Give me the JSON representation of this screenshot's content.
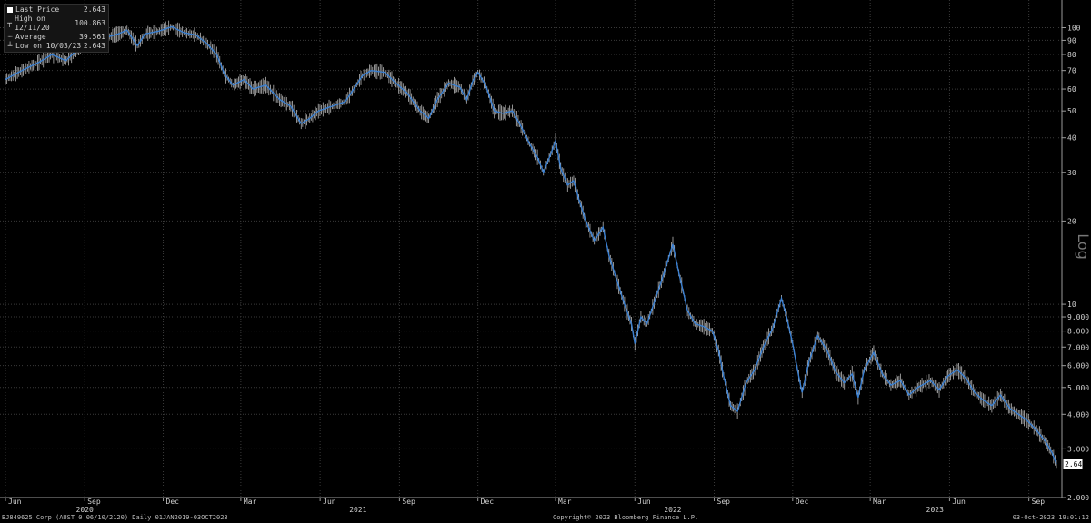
{
  "legend": {
    "last_price_label": "Last Price",
    "last_price_value": "2.643",
    "high_label": "High on 12/11/20",
    "high_value": "100.863",
    "average_label": "Average",
    "average_value": "39.561",
    "low_label": "Low on 10/03/23",
    "low_value": "2.643"
  },
  "axis_scale_label": "Log",
  "footer": {
    "left": "BJ849625 Corp (AUST 0 06/10/2120)  Daily 01JAN2019-03OCT2023",
    "center": "Copyright© 2023 Bloomberg Finance L.P.",
    "right": "03-Oct-2023 19:01:12"
  },
  "colors": {
    "background": "#000000",
    "line": "#3a7fd0",
    "bar": "#d8d8d8",
    "grid": "#3a3a3a"
  },
  "chart_data": {
    "type": "line",
    "y_scale": "log",
    "ylim": [
      2.0,
      115
    ],
    "y_ticks": [
      {
        "v": 100,
        "label": "100"
      },
      {
        "v": 90,
        "label": "90"
      },
      {
        "v": 80,
        "label": "80"
      },
      {
        "v": 70,
        "label": "70"
      },
      {
        "v": 60,
        "label": "60"
      },
      {
        "v": 50,
        "label": "50"
      },
      {
        "v": 40,
        "label": "40"
      },
      {
        "v": 30,
        "label": "30"
      },
      {
        "v": 20,
        "label": "20"
      },
      {
        "v": 10,
        "label": "10"
      },
      {
        "v": 9,
        "label": "9.000"
      },
      {
        "v": 8,
        "label": "8.000"
      },
      {
        "v": 7,
        "label": "7.000"
      },
      {
        "v": 6,
        "label": "6.000"
      },
      {
        "v": 5,
        "label": "5.000"
      },
      {
        "v": 4,
        "label": "4.000"
      },
      {
        "v": 3,
        "label": "3.000"
      },
      {
        "v": 2,
        "label": "2.000"
      }
    ],
    "x_range": [
      "2020-06-01",
      "2023-10-03"
    ],
    "month_ticks": [
      {
        "date": "2020-06-01",
        "label": "Jun"
      },
      {
        "date": "2020-09-01",
        "label": "Sep"
      },
      {
        "date": "2020-12-01",
        "label": "Dec"
      },
      {
        "date": "2021-03-01",
        "label": "Mar"
      },
      {
        "date": "2021-06-01",
        "label": "Jun"
      },
      {
        "date": "2021-09-01",
        "label": "Sep"
      },
      {
        "date": "2021-12-01",
        "label": "Dec"
      },
      {
        "date": "2022-03-01",
        "label": "Mar"
      },
      {
        "date": "2022-06-01",
        "label": "Jun"
      },
      {
        "date": "2022-09-01",
        "label": "Sep"
      },
      {
        "date": "2022-12-01",
        "label": "Dec"
      },
      {
        "date": "2023-03-01",
        "label": "Mar"
      },
      {
        "date": "2023-06-01",
        "label": "Jun"
      },
      {
        "date": "2023-09-01",
        "label": "Sep"
      }
    ],
    "year_labels": [
      {
        "date": "2020-09-01",
        "label": "2020"
      },
      {
        "date": "2021-07-15",
        "label": "2021"
      },
      {
        "date": "2022-07-15",
        "label": "2022"
      },
      {
        "date": "2023-05-15",
        "label": "2023"
      }
    ],
    "last_price_tag": "2.643",
    "series": [
      {
        "points": [
          [
            "2020-06-01",
            65
          ],
          [
            "2020-06-20",
            70
          ],
          [
            "2020-07-10",
            75
          ],
          [
            "2020-07-25",
            80
          ],
          [
            "2020-08-10",
            76
          ],
          [
            "2020-08-25",
            84
          ],
          [
            "2020-09-10",
            88
          ],
          [
            "2020-09-25",
            92
          ],
          [
            "2020-10-10",
            95
          ],
          [
            "2020-10-20",
            98
          ],
          [
            "2020-11-01",
            86
          ],
          [
            "2020-11-10",
            95
          ],
          [
            "2020-11-25",
            97
          ],
          [
            "2020-12-11",
            100.8
          ],
          [
            "2020-12-25",
            96
          ],
          [
            "2021-01-08",
            94
          ],
          [
            "2021-01-20",
            88
          ],
          [
            "2021-02-01",
            80
          ],
          [
            "2021-02-10",
            68
          ],
          [
            "2021-02-20",
            62
          ],
          [
            "2021-03-05",
            65
          ],
          [
            "2021-03-15",
            60
          ],
          [
            "2021-03-30",
            62
          ],
          [
            "2021-04-15",
            55
          ],
          [
            "2021-04-28",
            52
          ],
          [
            "2021-05-10",
            45
          ],
          [
            "2021-05-20",
            47
          ],
          [
            "2021-05-30",
            50
          ],
          [
            "2021-06-15",
            52
          ],
          [
            "2021-06-30",
            54
          ],
          [
            "2021-07-10",
            60
          ],
          [
            "2021-07-20",
            67
          ],
          [
            "2021-07-30",
            70
          ],
          [
            "2021-08-15",
            69
          ],
          [
            "2021-08-28",
            63
          ],
          [
            "2021-09-10",
            58
          ],
          [
            "2021-09-25",
            50
          ],
          [
            "2021-10-05",
            47
          ],
          [
            "2021-10-15",
            55
          ],
          [
            "2021-10-28",
            63
          ],
          [
            "2021-11-10",
            61
          ],
          [
            "2021-11-18",
            55
          ],
          [
            "2021-11-25",
            64
          ],
          [
            "2021-12-01",
            69
          ],
          [
            "2021-12-10",
            62
          ],
          [
            "2021-12-20",
            50
          ],
          [
            "2021-12-30",
            49
          ],
          [
            "2022-01-10",
            50
          ],
          [
            "2022-01-20",
            44
          ],
          [
            "2022-01-30",
            38
          ],
          [
            "2022-02-08",
            34
          ],
          [
            "2022-02-15",
            30
          ],
          [
            "2022-02-25",
            36
          ],
          [
            "2022-03-01",
            39
          ],
          [
            "2022-03-07",
            31
          ],
          [
            "2022-03-15",
            27
          ],
          [
            "2022-03-22",
            28
          ],
          [
            "2022-03-28",
            24
          ],
          [
            "2022-04-05",
            20
          ],
          [
            "2022-04-15",
            17
          ],
          [
            "2022-04-25",
            19
          ],
          [
            "2022-05-02",
            15
          ],
          [
            "2022-05-10",
            12.5
          ],
          [
            "2022-05-20",
            10
          ],
          [
            "2022-05-28",
            8.5
          ],
          [
            "2022-06-01",
            7.2
          ],
          [
            "2022-06-08",
            9
          ],
          [
            "2022-06-15",
            8.5
          ],
          [
            "2022-06-25",
            10.5
          ],
          [
            "2022-07-05",
            13
          ],
          [
            "2022-07-15",
            16.5
          ],
          [
            "2022-07-22",
            13
          ],
          [
            "2022-08-01",
            9.5
          ],
          [
            "2022-08-10",
            8.5
          ],
          [
            "2022-08-20",
            8.3
          ],
          [
            "2022-08-30",
            8
          ],
          [
            "2022-09-06",
            6.8
          ],
          [
            "2022-09-12",
            5.5
          ],
          [
            "2022-09-20",
            4.3
          ],
          [
            "2022-09-28",
            4.1
          ],
          [
            "2022-10-08",
            5.2
          ],
          [
            "2022-10-18",
            5.8
          ],
          [
            "2022-10-28",
            7
          ],
          [
            "2022-11-08",
            8.2
          ],
          [
            "2022-11-18",
            10.5
          ],
          [
            "2022-11-24",
            9
          ],
          [
            "2022-12-01",
            7.2
          ],
          [
            "2022-12-08",
            5.5
          ],
          [
            "2022-12-12",
            4.8
          ],
          [
            "2022-12-20",
            6.2
          ],
          [
            "2022-12-30",
            7.7
          ],
          [
            "2023-01-10",
            6.8
          ],
          [
            "2023-01-20",
            5.7
          ],
          [
            "2023-01-30",
            5.2
          ],
          [
            "2023-02-08",
            5.6
          ],
          [
            "2023-02-15",
            4.6
          ],
          [
            "2023-02-22",
            5.8
          ],
          [
            "2023-03-05",
            6.7
          ],
          [
            "2023-03-15",
            5.6
          ],
          [
            "2023-03-25",
            5.1
          ],
          [
            "2023-04-05",
            5.3
          ],
          [
            "2023-04-15",
            4.7
          ],
          [
            "2023-04-25",
            5
          ],
          [
            "2023-05-10",
            5.3
          ],
          [
            "2023-05-20",
            4.9
          ],
          [
            "2023-05-30",
            5.5
          ],
          [
            "2023-06-10",
            5.8
          ],
          [
            "2023-06-20",
            5.4
          ],
          [
            "2023-06-30",
            4.8
          ],
          [
            "2023-07-10",
            4.5
          ],
          [
            "2023-07-20",
            4.3
          ],
          [
            "2023-07-30",
            4.7
          ],
          [
            "2023-08-10",
            4.2
          ],
          [
            "2023-08-20",
            4.0
          ],
          [
            "2023-08-30",
            3.8
          ],
          [
            "2023-09-10",
            3.5
          ],
          [
            "2023-09-20",
            3.2
          ],
          [
            "2023-09-28",
            2.9
          ],
          [
            "2023-10-03",
            2.643
          ]
        ]
      }
    ]
  }
}
